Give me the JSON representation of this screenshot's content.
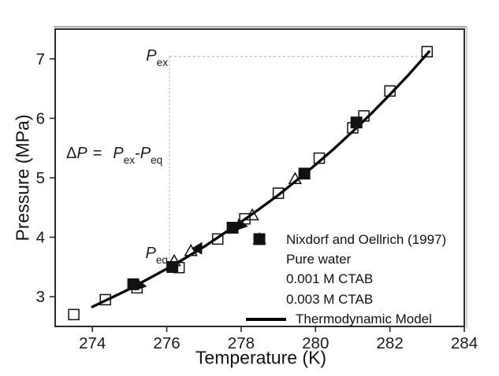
{
  "chart_data": {
    "type": "scatter",
    "title": "",
    "xlabel": "Temperature (K)",
    "ylabel": "Pressure (MPa)",
    "xlim": [
      273,
      284
    ],
    "ylim": [
      2.5,
      7.5
    ],
    "x_ticks": [
      274,
      276,
      278,
      280,
      282,
      284
    ],
    "y_ticks": [
      3,
      4,
      5,
      6,
      7
    ],
    "grid": false,
    "legend_position": "bottom-right",
    "series": [
      {
        "name": "Nixdorf and Oellrich (1997)",
        "marker": "open-square",
        "points": [
          [
            273.5,
            2.7
          ],
          [
            274.35,
            2.95
          ],
          [
            275.2,
            3.15
          ],
          [
            276.33,
            3.49
          ],
          [
            277.37,
            3.97
          ],
          [
            278.1,
            4.31
          ],
          [
            279.0,
            4.74
          ],
          [
            280.1,
            5.33
          ],
          [
            281.0,
            5.84
          ],
          [
            281.3,
            6.04
          ],
          [
            282.0,
            6.46
          ],
          [
            283.0,
            7.12
          ]
        ]
      },
      {
        "name": "Pure water",
        "marker": "filled-square",
        "points": [
          [
            275.1,
            3.21
          ],
          [
            276.15,
            3.5
          ],
          [
            277.77,
            4.16
          ],
          [
            279.7,
            5.07
          ],
          [
            281.1,
            5.93
          ]
        ]
      },
      {
        "name": "0.001 M CTAB",
        "marker": "filled-triangle",
        "points": [
          [
            275.3,
            3.19,
            100
          ],
          [
            276.87,
            3.83,
            30
          ],
          [
            278.02,
            4.2,
            100
          ]
        ]
      },
      {
        "name": "0.003 M CTAB",
        "marker": "open-triangle",
        "points": [
          [
            276.2,
            3.6
          ],
          [
            276.65,
            3.77
          ],
          [
            278.3,
            4.37
          ],
          [
            279.45,
            4.98
          ]
        ]
      },
      {
        "name": "Thermodynamic Model",
        "marker": "line",
        "points": [
          [
            274.0,
            2.83
          ],
          [
            274.5,
            2.98
          ],
          [
            275.0,
            3.13
          ],
          [
            275.5,
            3.3
          ],
          [
            276.0,
            3.47
          ],
          [
            276.5,
            3.65
          ],
          [
            277.0,
            3.84
          ],
          [
            277.5,
            4.05
          ],
          [
            278.0,
            4.26
          ],
          [
            278.5,
            4.48
          ],
          [
            279.0,
            4.71
          ],
          [
            279.5,
            4.96
          ],
          [
            280.0,
            5.22
          ],
          [
            280.5,
            5.49
          ],
          [
            281.0,
            5.78
          ],
          [
            281.5,
            6.08
          ],
          [
            282.0,
            6.4
          ],
          [
            282.5,
            6.73
          ],
          [
            283.05,
            7.12
          ]
        ]
      }
    ],
    "annotations": {
      "p_ex": {
        "base": "P",
        "sub": "ex"
      },
      "p_eq": {
        "base": "P",
        "sub": "eq"
      },
      "equation": {
        "delta": "Δ",
        "p": "P",
        "equals": "=",
        "t1": "P",
        "t1sub": "ex",
        "minus": "-",
        "t2": "P",
        "t2sub": "eq"
      },
      "guide_h": {
        "p": 7.04,
        "t_from": 276.07,
        "t_to": 282.95
      },
      "guide_v": {
        "t": 276.07,
        "p_from": 7.04,
        "p_to": 3.52
      }
    },
    "colors": {
      "line": "#000000",
      "marker": "#111111",
      "frame": "#2a2a2a",
      "guide": "#b5b5b5",
      "text": "#1a1a1a"
    }
  }
}
